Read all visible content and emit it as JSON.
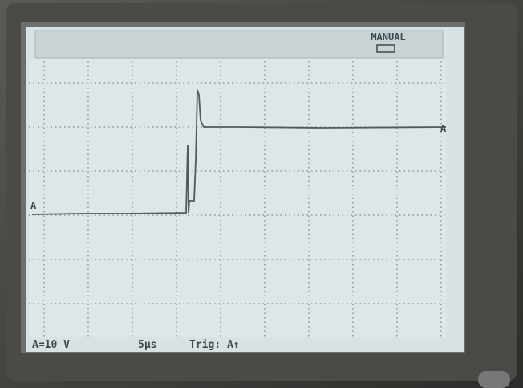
{
  "header": {
    "mode": "MANUAL"
  },
  "markers": {
    "left": "A",
    "right": "A"
  },
  "status": {
    "scale": "A=10 V",
    "timebase": "5µs",
    "trigger": "Trig: A↑"
  }
}
